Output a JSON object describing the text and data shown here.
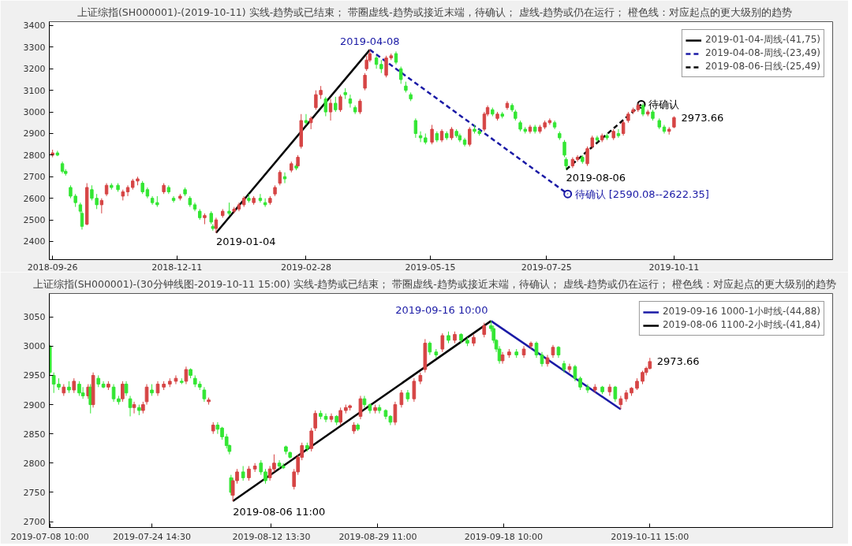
{
  "chart_data": [
    {
      "type": "candlestick",
      "title": "上证综指(SH000001)-(2019-10-11)  实线-趋势或已结束；  带圈虚线-趋势或接近末端，待确认；  虚线-趋势或仍在运行；  橙色线：对应起点的更大级别的趋势",
      "xlim": [
        "2018-09-24",
        "2020-01-16"
      ],
      "ylim": [
        2316,
        3418
      ],
      "xticks": [
        "2018-09-26",
        "2018-12-11",
        "2019-02-28",
        "2019-05-15",
        "2019-07-25",
        "2019-10-11"
      ],
      "yticks": [
        2400,
        2500,
        2600,
        2700,
        2800,
        2900,
        3000,
        3100,
        3200,
        3300,
        3400
      ],
      "grid": false,
      "legend": "top right",
      "x": [
        "2018-09-26",
        "2018-09-29",
        "2018-10-02",
        "2018-10-04",
        "2018-10-07",
        "2018-10-10",
        "2018-10-13",
        "2018-10-14",
        "2018-10-17",
        "2018-10-20",
        "2018-10-23",
        "2018-10-26",
        "2018-10-29",
        "2018-11-01",
        "2018-11-05",
        "2018-11-08",
        "2018-11-11",
        "2018-11-14",
        "2018-11-17",
        "2018-11-20",
        "2018-11-23",
        "2018-11-26",
        "2018-11-29",
        "2018-12-03",
        "2018-12-06",
        "2018-12-09",
        "2018-12-13",
        "2018-12-16",
        "2018-12-19",
        "2018-12-22",
        "2018-12-25",
        "2018-12-28",
        "2019-01-01",
        "2019-01-02",
        "2019-01-04",
        "2019-01-08",
        "2019-01-12",
        "2019-01-15",
        "2019-01-18",
        "2019-01-21",
        "2019-01-24",
        "2019-01-27",
        "2019-01-31",
        "2019-02-03",
        "2019-02-06",
        "2019-02-09",
        "2019-02-12",
        "2019-02-15",
        "2019-02-19",
        "2019-02-22",
        "2019-02-23",
        "2019-02-25",
        "2019-02-28",
        "2019-03-03",
        "2019-03-06",
        "2019-03-09",
        "2019-03-12",
        "2019-03-15",
        "2019-03-18",
        "2019-03-21",
        "2019-03-24",
        "2019-03-27",
        "2019-03-30",
        "2019-04-02",
        "2019-04-05",
        "2019-04-06",
        "2019-04-08",
        "2019-04-12",
        "2019-04-15",
        "2019-04-18",
        "2019-04-21",
        "2019-04-24",
        "2019-04-27",
        "2019-04-30",
        "2019-05-03",
        "2019-05-06",
        "2019-05-09",
        "2019-05-12",
        "2019-05-16",
        "2019-05-19",
        "2019-05-22",
        "2019-05-25",
        "2019-05-28",
        "2019-05-31",
        "2019-06-02",
        "2019-06-05",
        "2019-06-08",
        "2019-06-11",
        "2019-06-14",
        "2019-06-17",
        "2019-06-19",
        "2019-06-22",
        "2019-06-25",
        "2019-06-28",
        "2019-07-01",
        "2019-07-04",
        "2019-07-06",
        "2019-07-09",
        "2019-07-12",
        "2019-07-15",
        "2019-07-18",
        "2019-07-21",
        "2019-07-24",
        "2019-07-27",
        "2019-07-30",
        "2019-08-02",
        "2019-08-05",
        "2019-08-06",
        "2019-08-10",
        "2019-08-13",
        "2019-08-16",
        "2019-08-19",
        "2019-08-22",
        "2019-08-25",
        "2019-08-28",
        "2019-08-31",
        "2019-09-04",
        "2019-09-07",
        "2019-09-10",
        "2019-09-13",
        "2019-09-16",
        "2019-09-19",
        "2019-09-22",
        "2019-09-25",
        "2019-09-28",
        "2019-10-02",
        "2019-10-05",
        "2019-10-08",
        "2019-10-11"
      ],
      "ohlc": [
        [
          2800,
          2825,
          2790,
          2810
        ],
        [
          2810,
          2820,
          2795,
          2800
        ],
        [
          2760,
          2770,
          2715,
          2725
        ],
        [
          2725,
          2735,
          2705,
          2715
        ],
        [
          2650,
          2660,
          2600,
          2610
        ],
        [
          2610,
          2620,
          2560,
          2580
        ],
        [
          2570,
          2580,
          2530,
          2540
        ],
        [
          2530,
          2540,
          2455,
          2470
        ],
        [
          2480,
          2670,
          2475,
          2650
        ],
        [
          2640,
          2660,
          2590,
          2600
        ],
        [
          2600,
          2620,
          2550,
          2570
        ],
        [
          2570,
          2600,
          2530,
          2590
        ],
        [
          2620,
          2670,
          2610,
          2660
        ],
        [
          2660,
          2670,
          2640,
          2650
        ],
        [
          2660,
          2670,
          2630,
          2640
        ],
        [
          2610,
          2640,
          2590,
          2630
        ],
        [
          2630,
          2660,
          2610,
          2650
        ],
        [
          2650,
          2690,
          2640,
          2680
        ],
        [
          2680,
          2700,
          2660,
          2690
        ],
        [
          2670,
          2680,
          2620,
          2630
        ],
        [
          2640,
          2650,
          2600,
          2610
        ],
        [
          2600,
          2610,
          2570,
          2580
        ],
        [
          2580,
          2610,
          2560,
          2570
        ],
        [
          2630,
          2670,
          2620,
          2660
        ],
        [
          2650,
          2660,
          2620,
          2630
        ],
        [
          2600,
          2610,
          2580,
          2590
        ],
        [
          2600,
          2620,
          2590,
          2610
        ],
        [
          2640,
          2650,
          2610,
          2620
        ],
        [
          2600,
          2610,
          2560,
          2570
        ],
        [
          2570,
          2580,
          2540,
          2550
        ],
        [
          2540,
          2550,
          2500,
          2510
        ],
        [
          2510,
          2530,
          2480,
          2520
        ],
        [
          2530,
          2540,
          2480,
          2490
        ],
        [
          2470,
          2480,
          2450,
          2460
        ],
        [
          2460,
          2510,
          2440,
          2500
        ],
        [
          2520,
          2550,
          2510,
          2540
        ],
        [
          2540,
          2580,
          2520,
          2530
        ],
        [
          2540,
          2560,
          2530,
          2550
        ],
        [
          2550,
          2580,
          2540,
          2570
        ],
        [
          2570,
          2610,
          2560,
          2600
        ],
        [
          2600,
          2620,
          2580,
          2590
        ],
        [
          2580,
          2610,
          2570,
          2600
        ],
        [
          2600,
          2620,
          2580,
          2590
        ],
        [
          2580,
          2600,
          2560,
          2570
        ],
        [
          2580,
          2610,
          2570,
          2600
        ],
        [
          2620,
          2660,
          2610,
          2650
        ],
        [
          2670,
          2730,
          2660,
          2720
        ],
        [
          2700,
          2720,
          2670,
          2690
        ],
        [
          2730,
          2770,
          2720,
          2760
        ],
        [
          2750,
          2760,
          2730,
          2740
        ],
        [
          2750,
          2800,
          2740,
          2790
        ],
        [
          2840,
          2990,
          2830,
          2960
        ],
        [
          2960,
          2990,
          2940,
          2950
        ],
        [
          2950,
          2980,
          2920,
          2970
        ],
        [
          3020,
          3100,
          3010,
          3080
        ],
        [
          3080,
          3120,
          3060,
          3100
        ],
        [
          3060,
          3070,
          2980,
          3000
        ],
        [
          3000,
          3060,
          2960,
          3040
        ],
        [
          3040,
          3070,
          3000,
          3010
        ],
        [
          3010,
          3080,
          3000,
          3070
        ],
        [
          3090,
          3110,
          3060,
          3080
        ],
        [
          3060,
          3080,
          3020,
          3040
        ],
        [
          3020,
          3030,
          2990,
          3000
        ],
        [
          3000,
          3060,
          2990,
          3050
        ],
        [
          3110,
          3180,
          3100,
          3170
        ],
        [
          3200,
          3260,
          3190,
          3240
        ],
        [
          3240,
          3288,
          3230,
          3270
        ],
        [
          3250,
          3260,
          3200,
          3220
        ],
        [
          3220,
          3240,
          3180,
          3200
        ],
        [
          3170,
          3260,
          3160,
          3250
        ],
        [
          3250,
          3270,
          3240,
          3260
        ],
        [
          3270,
          3280,
          3220,
          3230
        ],
        [
          3200,
          3210,
          3130,
          3150
        ],
        [
          3120,
          3140,
          3090,
          3100
        ],
        [
          3080,
          3090,
          3050,
          3060
        ],
        [
          2960,
          2970,
          2880,
          2900
        ],
        [
          2890,
          2910,
          2860,
          2880
        ],
        [
          2880,
          2900,
          2850,
          2860
        ],
        [
          2860,
          2940,
          2850,
          2920
        ],
        [
          2900,
          2910,
          2860,
          2870
        ],
        [
          2870,
          2920,
          2860,
          2910
        ],
        [
          2900,
          2910,
          2870,
          2880
        ],
        [
          2880,
          2930,
          2870,
          2920
        ],
        [
          2910,
          2920,
          2880,
          2890
        ],
        [
          2890,
          2900,
          2860,
          2870
        ],
        [
          2870,
          2880,
          2840,
          2850
        ],
        [
          2850,
          2930,
          2840,
          2920
        ],
        [
          2920,
          2940,
          2900,
          2910
        ],
        [
          2910,
          2920,
          2890,
          2900
        ],
        [
          2920,
          3000,
          2910,
          2990
        ],
        [
          2990,
          3030,
          2980,
          3020
        ],
        [
          3010,
          3020,
          2980,
          2990
        ],
        [
          2970,
          3000,
          2960,
          2990
        ],
        [
          2990,
          3000,
          2970,
          2980
        ],
        [
          3020,
          3050,
          3010,
          3040
        ],
        [
          3030,
          3040,
          3000,
          3010
        ],
        [
          3000,
          3010,
          2960,
          2970
        ],
        [
          2950,
          2960,
          2910,
          2920
        ],
        [
          2920,
          2930,
          2900,
          2910
        ],
        [
          2910,
          2940,
          2900,
          2930
        ],
        [
          2930,
          2940,
          2900,
          2910
        ],
        [
          2910,
          2940,
          2900,
          2930
        ],
        [
          2930,
          2960,
          2920,
          2950
        ],
        [
          2950,
          2970,
          2940,
          2960
        ],
        [
          2950,
          2960,
          2920,
          2930
        ],
        [
          2900,
          2910,
          2870,
          2880
        ],
        [
          2860,
          2870,
          2790,
          2800
        ],
        [
          2780,
          2790,
          2733,
          2750
        ],
        [
          2750,
          2790,
          2740,
          2780
        ],
        [
          2780,
          2800,
          2770,
          2790
        ],
        [
          2790,
          2800,
          2760,
          2770
        ],
        [
          2760,
          2840,
          2750,
          2830
        ],
        [
          2840,
          2890,
          2830,
          2880
        ],
        [
          2880,
          2890,
          2860,
          2870
        ],
        [
          2870,
          2900,
          2860,
          2890
        ],
        [
          2890,
          2900,
          2870,
          2880
        ],
        [
          2880,
          2920,
          2870,
          2910
        ],
        [
          2900,
          2920,
          2880,
          2890
        ],
        [
          2900,
          2960,
          2890,
          2950
        ],
        [
          2960,
          3000,
          2950,
          2990
        ],
        [
          3000,
          3020,
          2990,
          3010
        ],
        [
          3010,
          3040,
          3000,
          3030
        ],
        [
          3030,
          3040,
          2980,
          2990
        ],
        [
          2990,
          3010,
          2980,
          3000
        ],
        [
          3000,
          3010,
          2960,
          2970
        ],
        [
          2960,
          2970,
          2920,
          2930
        ],
        [
          2930,
          2940,
          2900,
          2910
        ],
        [
          2910,
          2930,
          2895,
          2920
        ],
        [
          2930,
          2980,
          2925,
          2973.66
        ]
      ],
      "colors": [
        "#d64545",
        "#33e633",
        "#33e633",
        "#33e633",
        "#33e633",
        "#33e633",
        "#33e633",
        "#33e633",
        "#d64545",
        "#33e633",
        "#33e633",
        "#d64545",
        "#d64545",
        "#33e633",
        "#33e633",
        "#d64545",
        "#d64545",
        "#d64545",
        "#d64545",
        "#33e633",
        "#33e633",
        "#33e633",
        "#33e633",
        "#d64545",
        "#33e633",
        "#33e633",
        "#d64545",
        "#33e633",
        "#33e633",
        "#33e633",
        "#33e633",
        "#d64545",
        "#33e633",
        "#33e633",
        "#d64545",
        "#d64545",
        "#33e633",
        "#d64545",
        "#d64545",
        "#d64545",
        "#33e633",
        "#d64545",
        "#33e633",
        "#33e633",
        "#d64545",
        "#d64545",
        "#d64545",
        "#33e633",
        "#d64545",
        "#33e633",
        "#d64545",
        "#d64545",
        "#33e633",
        "#d64545",
        "#d64545",
        "#d64545",
        "#33e633",
        "#d64545",
        "#33e633",
        "#d64545",
        "#33e633",
        "#33e633",
        "#33e633",
        "#d64545",
        "#d64545",
        "#d64545",
        "#d64545",
        "#33e633",
        "#33e633",
        "#d64545",
        "#d64545",
        "#33e633",
        "#33e633",
        "#33e633",
        "#33e633",
        "#33e633",
        "#33e633",
        "#33e633",
        "#d64545",
        "#33e633",
        "#d64545",
        "#33e633",
        "#d64545",
        "#33e633",
        "#33e633",
        "#33e633",
        "#d64545",
        "#33e633",
        "#33e633",
        "#d64545",
        "#d64545",
        "#33e633",
        "#d64545",
        "#33e633",
        "#d64545",
        "#33e633",
        "#33e633",
        "#33e633",
        "#33e633",
        "#d64545",
        "#33e633",
        "#d64545",
        "#d64545",
        "#d64545",
        "#33e633",
        "#33e633",
        "#33e633",
        "#33e633",
        "#d64545",
        "#d64545",
        "#33e633",
        "#d64545",
        "#d64545",
        "#33e633",
        "#d64545",
        "#33e633",
        "#d64545",
        "#33e633",
        "#d64545",
        "#d64545",
        "#d64545",
        "#d64545",
        "#33e633",
        "#d64545",
        "#33e633",
        "#33e633",
        "#33e633",
        "#d64545",
        "#d64545"
      ],
      "series": [
        {
          "type": "line",
          "name": "2019-01-04-周线-(41,75)",
          "color": "#000000",
          "line_style": "solid",
          "x": [
            "2019-01-04",
            "2019-04-08"
          ],
          "values": [
            2440,
            3288
          ]
        },
        {
          "type": "line",
          "name": "2019-04-08-周线-(23,49)",
          "color": "#1a1aa6",
          "line_style": "dashed",
          "x": [
            "2019-04-08",
            "2019-08-07"
          ],
          "values": [
            3288,
            2620
          ]
        },
        {
          "type": "line",
          "name": "2019-08-06-日线-(25,49)",
          "color": "#000000",
          "line_style": "dashed",
          "x": [
            "2019-08-06",
            "2019-09-21"
          ],
          "values": [
            2733,
            3035
          ]
        },
        {
          "type": "scatter",
          "color": "#1a1aa6",
          "marker": "circle",
          "x": [
            "2019-08-07"
          ],
          "values": [
            2620
          ]
        },
        {
          "type": "scatter",
          "color": "#000000",
          "marker": "circle",
          "x": [
            "2019-09-21"
          ],
          "values": [
            3035
          ]
        }
      ],
      "annotations": [
        {
          "text": "2019-04-08",
          "x": "2019-04-08",
          "y": 3288
        },
        {
          "text": "2019-01-04",
          "x": "2019-01-04",
          "y": 2440
        },
        {
          "text": "2019-08-06",
          "x": "2019-08-06",
          "y": 2733
        },
        {
          "text": "待确认 [2590.08--2622.35]",
          "x": "2019-08-07",
          "y": 2620
        },
        {
          "text": "待确认",
          "x": "2019-09-21",
          "y": 3035
        },
        {
          "text": "2973.66",
          "x": "2019-10-11",
          "y": 2973.66
        }
      ]
    },
    {
      "type": "candlestick",
      "title": "上证综指(SH000001)-(30分钟线图-2019-10-11 15:00)  实线-趋势或已结束；  带圈虚线-趋势或接近末端，待确认；  虚线-趋势或仍在运行；  橙色线：对应起点的更大级别的趋势",
      "xlim": [
        "2019-07-08T08:00",
        "2019-11-09T15:00"
      ],
      "ylim": [
        2690,
        3090
      ],
      "xticks": [
        {
          "value": "2019-07-08T10:00",
          "label": "2019-07-08 10:00"
        },
        {
          "value": "2019-07-24T14:30",
          "label": "2019-07-24 14:30"
        },
        {
          "value": "2019-08-12T13:30",
          "label": "2019-08-12 13:30"
        },
        {
          "value": "2019-08-29T11:00",
          "label": "2019-08-29 11:00"
        },
        {
          "value": "2019-09-18T10:00",
          "label": "2019-09-18 10:00"
        },
        {
          "value": "2019-10-11T15:00",
          "label": "2019-10-11 15:00"
        }
      ],
      "yticks": [
        2700,
        2750,
        2800,
        2850,
        2900,
        2950,
        3000,
        3050
      ],
      "grid": false,
      "legend": "top right",
      "x": [
        "2019-07-08T10:00",
        "2019-07-09T01:00",
        "2019-07-09T20:00",
        "2019-07-10T15:00",
        "2019-07-11T11:00",
        "2019-07-12T06:00",
        "2019-07-13T02:00",
        "2019-07-13T16:00",
        "2019-07-14T12:00",
        "2019-07-14T21:00",
        "2019-07-15T07:00",
        "2019-07-16T03:00",
        "2019-07-16T22:00",
        "2019-07-17T17:00",
        "2019-07-18T13:00",
        "2019-07-19T08:00",
        "2019-07-19T23:00",
        "2019-07-20T13:00",
        "2019-07-21T04:00",
        "2019-07-21T19:00",
        "2019-07-22T14:00",
        "2019-07-23T05:00",
        "2019-07-23T19:00",
        "2019-07-24T14:30",
        "2019-07-25T13:00",
        "2019-07-26T12:00",
        "2019-07-27T11:00",
        "2019-07-28T10:00",
        "2019-07-29T08:00",
        "2019-07-30T01:00",
        "2019-07-30T18:00",
        "2019-07-31T11:00",
        "2019-08-01T05:00",
        "2019-08-01T22:00",
        "2019-08-02T15:00",
        "2019-08-03T08:00",
        "2019-08-04T01:00",
        "2019-08-04T18:00",
        "2019-08-05T11:00",
        "2019-08-05T22:00",
        "2019-08-06T04:00",
        "2019-08-06T11:00",
        "2019-08-07T03:00",
        "2019-08-08T02:00",
        "2019-08-09T00:00",
        "2019-08-09T23:00",
        "2019-08-10T22:00",
        "2019-08-11T15:00",
        "2019-08-12T08:00",
        "2019-08-13T00:00",
        "2019-08-13T20:00",
        "2019-08-14T11:00",
        "2019-08-14T21:00",
        "2019-08-15T13:00",
        "2019-08-16T04:00",
        "2019-08-16T19:00",
        "2019-08-17T10:00",
        "2019-08-18T06:00",
        "2019-08-18T22:00",
        "2019-08-19T13:00",
        "2019-08-20T09:00",
        "2019-08-21T05:00",
        "2019-08-22T02:00",
        "2019-08-22T22:00",
        "2019-08-23T13:00",
        "2019-08-24T09:00",
        "2019-08-25T01:00",
        "2019-08-25T16:00",
        "2019-08-26T07:00",
        "2019-08-26T17:00",
        "2019-08-27T08:00",
        "2019-08-28T05:00",
        "2019-08-29T01:00",
        "2019-08-29T17:00",
        "2019-08-30T17:00",
        "2019-08-31T11:00",
        "2019-09-01T05:00",
        "2019-09-02T05:00",
        "2019-09-03T05:00",
        "2019-09-04T05:00",
        "2019-09-05T05:00",
        "2019-09-05T23:00",
        "2019-09-06T17:00",
        "2019-09-07T17:00",
        "2019-09-08T17:00",
        "2019-09-09T16:00",
        "2019-09-10T16:00",
        "2019-09-11T16:00",
        "2019-09-12T16:00",
        "2019-09-13T16:00",
        "2019-09-15T08:00",
        "2019-09-16T10:00",
        "2019-09-16T20:00",
        "2019-09-17T06:00",
        "2019-09-17T18:00",
        "2019-09-18T06:00",
        "2019-09-19T07:00",
        "2019-09-20T11:00",
        "2019-09-21T15:00",
        "2019-09-22T18:00",
        "2019-09-23T15:00",
        "2019-09-24T12:00",
        "2019-09-25T09:00",
        "2019-09-26T06:00",
        "2019-09-27T03:00",
        "2019-09-28T00:00",
        "2019-09-28T21:00",
        "2019-09-29T18:00",
        "2019-09-30T14:00",
        "2019-10-01T18:00",
        "2019-10-02T22:00",
        "2019-10-04T02:00",
        "2019-10-05T06:00",
        "2019-10-06T03:00",
        "2019-10-07T00:00",
        "2019-10-07T21:00",
        "2019-10-08T17:00",
        "2019-10-09T14:00",
        "2019-10-10T11:00",
        "2019-10-11T01:00",
        "2019-10-11T15:00"
      ],
      "ohlc": [
        [
          3000,
          3002,
          2950,
          2955
        ],
        [
          2950,
          2955,
          2920,
          2935
        ],
        [
          2935,
          2945,
          2925,
          2930
        ],
        [
          2920,
          2935,
          2915,
          2930
        ],
        [
          2930,
          2940,
          2920,
          2925
        ],
        [
          2925,
          2945,
          2920,
          2940
        ],
        [
          2935,
          2940,
          2915,
          2920
        ],
        [
          2920,
          2930,
          2910,
          2915
        ],
        [
          2915,
          2935,
          2910,
          2930
        ],
        [
          2930,
          2935,
          2885,
          2900
        ],
        [
          2900,
          2955,
          2895,
          2950
        ],
        [
          2945,
          2950,
          2930,
          2935
        ],
        [
          2935,
          2940,
          2928,
          2930
        ],
        [
          2930,
          2940,
          2925,
          2935
        ],
        [
          2930,
          2935,
          2905,
          2910
        ],
        [
          2910,
          2915,
          2900,
          2905
        ],
        [
          2910,
          2940,
          2905,
          2935
        ],
        [
          2935,
          2940,
          2915,
          2920
        ],
        [
          2910,
          2915,
          2880,
          2895
        ],
        [
          2895,
          2905,
          2885,
          2900
        ],
        [
          2895,
          2900,
          2882,
          2890
        ],
        [
          2890,
          2905,
          2885,
          2900
        ],
        [
          2905,
          2935,
          2900,
          2930
        ],
        [
          2925,
          2935,
          2915,
          2920
        ],
        [
          2920,
          2940,
          2915,
          2935
        ],
        [
          2930,
          2940,
          2925,
          2935
        ],
        [
          2935,
          2945,
          2930,
          2940
        ],
        [
          2940,
          2950,
          2935,
          2945
        ],
        [
          2940,
          2945,
          2935,
          2938
        ],
        [
          2940,
          2965,
          2935,
          2960
        ],
        [
          2960,
          2962,
          2945,
          2950
        ],
        [
          2945,
          2950,
          2930,
          2935
        ],
        [
          2935,
          2940,
          2925,
          2930
        ],
        [
          2925,
          2930,
          2905,
          2910
        ],
        [
          2905,
          2912,
          2900,
          2908
        ],
        [
          2855,
          2870,
          2850,
          2865
        ],
        [
          2865,
          2870,
          2850,
          2858
        ],
        [
          2860,
          2862,
          2840,
          2845
        ],
        [
          2845,
          2850,
          2825,
          2830
        ],
        [
          2830,
          2832,
          2815,
          2820
        ],
        [
          2775,
          2780,
          2745,
          2750
        ],
        [
          2745,
          2775,
          2735,
          2770
        ],
        [
          2770,
          2790,
          2765,
          2785
        ],
        [
          2785,
          2795,
          2770,
          2775
        ],
        [
          2775,
          2795,
          2770,
          2790
        ],
        [
          2790,
          2800,
          2785,
          2795
        ],
        [
          2800,
          2805,
          2780,
          2785
        ],
        [
          2785,
          2790,
          2765,
          2770
        ],
        [
          2775,
          2795,
          2770,
          2790
        ],
        [
          2790,
          2815,
          2785,
          2800
        ],
        [
          2800,
          2805,
          2790,
          2795
        ],
        [
          2795,
          2800,
          2790,
          2792
        ],
        [
          2828,
          2830,
          2815,
          2820
        ],
        [
          2818,
          2820,
          2808,
          2810
        ],
        [
          2760,
          2790,
          2755,
          2785
        ],
        [
          2785,
          2815,
          2780,
          2810
        ],
        [
          2810,
          2835,
          2805,
          2830
        ],
        [
          2830,
          2835,
          2820,
          2825
        ],
        [
          2825,
          2860,
          2820,
          2855
        ],
        [
          2860,
          2890,
          2855,
          2885
        ],
        [
          2885,
          2890,
          2875,
          2880
        ],
        [
          2880,
          2885,
          2870,
          2875
        ],
        [
          2875,
          2885,
          2870,
          2880
        ],
        [
          2880,
          2882,
          2865,
          2870
        ],
        [
          2870,
          2895,
          2865,
          2890
        ],
        [
          2890,
          2900,
          2885,
          2895
        ],
        [
          2895,
          2900,
          2890,
          2898
        ],
        [
          2855,
          2870,
          2850,
          2865
        ],
        [
          2865,
          2868,
          2855,
          2858
        ],
        [
          2880,
          2915,
          2875,
          2910
        ],
        [
          2910,
          2915,
          2895,
          2900
        ],
        [
          2900,
          2902,
          2885,
          2890
        ],
        [
          2890,
          2900,
          2885,
          2895
        ],
        [
          2895,
          2900,
          2885,
          2890
        ],
        [
          2890,
          2892,
          2875,
          2880
        ],
        [
          2880,
          2882,
          2865,
          2870
        ],
        [
          2870,
          2905,
          2865,
          2900
        ],
        [
          2900,
          2925,
          2895,
          2920
        ],
        [
          2920,
          2925,
          2905,
          2910
        ],
        [
          2910,
          2945,
          2905,
          2940
        ],
        [
          2940,
          2955,
          2935,
          2950
        ],
        [
          2960,
          3012,
          2955,
          3005
        ],
        [
          3005,
          3008,
          2985,
          2990
        ],
        [
          2990,
          2995,
          2980,
          2985
        ],
        [
          2995,
          3022,
          2990,
          3018
        ],
        [
          3018,
          3025,
          3005,
          3010
        ],
        [
          3010,
          3025,
          3005,
          3020
        ],
        [
          3020,
          3022,
          3005,
          3010
        ],
        [
          3010,
          3015,
          3000,
          3005
        ],
        [
          3005,
          3020,
          3000,
          3015
        ],
        [
          3020,
          3040,
          3015,
          3035
        ],
        [
          3035,
          3043,
          3025,
          3030
        ],
        [
          3030,
          3035,
          3005,
          3010
        ],
        [
          3010,
          3012,
          2990,
          2995
        ],
        [
          2995,
          3000,
          2970,
          2975
        ],
        [
          2975,
          2990,
          2970,
          2985
        ],
        [
          2985,
          2995,
          2980,
          2990
        ],
        [
          2990,
          2995,
          2980,
          2985
        ],
        [
          2985,
          3000,
          2980,
          2995
        ],
        [
          3000,
          3008,
          2995,
          3005
        ],
        [
          3005,
          3008,
          2980,
          2985
        ],
        [
          2985,
          2990,
          2965,
          2970
        ],
        [
          2970,
          2985,
          2965,
          2980
        ],
        [
          2985,
          3002,
          2980,
          2998
        ],
        [
          2998,
          3000,
          2980,
          2985
        ],
        [
          2970,
          2975,
          2955,
          2960
        ],
        [
          2960,
          2970,
          2955,
          2965
        ],
        [
          2965,
          2968,
          2940,
          2945
        ],
        [
          2945,
          2948,
          2925,
          2930
        ],
        [
          2930,
          2935,
          2920,
          2925
        ],
        [
          2925,
          2935,
          2920,
          2930
        ],
        [
          2930,
          2932,
          2918,
          2922
        ],
        [
          2922,
          2935,
          2915,
          2930
        ],
        [
          2930,
          2932,
          2905,
          2910
        ],
        [
          2900,
          2915,
          2892,
          2910
        ],
        [
          2910,
          2925,
          2905,
          2920
        ],
        [
          2920,
          2930,
          2915,
          2928
        ],
        [
          2928,
          2945,
          2925,
          2940
        ],
        [
          2940,
          2958,
          2935,
          2955
        ],
        [
          2955,
          2965,
          2950,
          2962
        ],
        [
          2962,
          2980,
          2960,
          2973.66
        ]
      ],
      "colors": [
        "#33e633",
        "#33e633",
        "#33e633",
        "#d64545",
        "#33e633",
        "#d64545",
        "#33e633",
        "#33e633",
        "#d64545",
        "#33e633",
        "#d64545",
        "#33e633",
        "#33e633",
        "#d64545",
        "#33e633",
        "#33e633",
        "#d64545",
        "#33e633",
        "#33e633",
        "#d64545",
        "#33e633",
        "#d64545",
        "#d64545",
        "#33e633",
        "#d64545",
        "#d64545",
        "#d64545",
        "#d64545",
        "#33e633",
        "#d64545",
        "#33e633",
        "#33e633",
        "#33e633",
        "#33e633",
        "#d64545",
        "#d64545",
        "#33e633",
        "#33e633",
        "#33e633",
        "#33e633",
        "#33e633",
        "#d64545",
        "#d64545",
        "#33e633",
        "#d64545",
        "#d64545",
        "#33e633",
        "#33e633",
        "#d64545",
        "#d64545",
        "#33e633",
        "#33e633",
        "#33e633",
        "#33e633",
        "#d64545",
        "#d64545",
        "#d64545",
        "#33e633",
        "#d64545",
        "#d64545",
        "#33e633",
        "#33e633",
        "#d64545",
        "#33e633",
        "#d64545",
        "#d64545",
        "#d64545",
        "#d64545",
        "#33e633",
        "#d64545",
        "#33e633",
        "#33e633",
        "#d64545",
        "#33e633",
        "#33e633",
        "#33e633",
        "#d64545",
        "#d64545",
        "#33e633",
        "#d64545",
        "#d64545",
        "#d64545",
        "#33e633",
        "#33e633",
        "#d64545",
        "#33e633",
        "#d64545",
        "#33e633",
        "#33e633",
        "#d64545",
        "#d64545",
        "#33e633",
        "#33e633",
        "#33e633",
        "#33e633",
        "#d64545",
        "#d64545",
        "#33e633",
        "#d64545",
        "#d64545",
        "#33e633",
        "#33e633",
        "#d64545",
        "#d64545",
        "#33e633",
        "#33e633",
        "#d64545",
        "#33e633",
        "#33e633",
        "#33e633",
        "#d64545",
        "#33e633",
        "#d64545",
        "#33e633",
        "#d64545",
        "#d64545",
        "#d64545",
        "#d64545",
        "#d64545",
        "#d64545",
        "#d64545"
      ],
      "series": [
        {
          "type": "line",
          "name": "2019-09-16 1000-1小时线-(44,88)",
          "color": "#1a1aa6",
          "line_style": "solid",
          "x": [
            "2019-09-16T10:00",
            "2019-10-07T00:00"
          ],
          "values": [
            3043,
            2892
          ]
        },
        {
          "type": "line",
          "name": "2019-08-06 1100-2小时线-(41,84)",
          "color": "#000000",
          "line_style": "solid",
          "x": [
            "2019-08-06T11:00",
            "2019-09-16T10:00"
          ],
          "values": [
            2735,
            3043
          ]
        }
      ],
      "annotations": [
        {
          "text": "2019-09-16 10:00",
          "x": "2019-09-16T10:00",
          "y": 3043
        },
        {
          "text": "2019-08-06 11:00",
          "x": "2019-08-06T11:00",
          "y": 2735
        },
        {
          "text": "2973.66",
          "x": "2019-10-11T15:00",
          "y": 2973.66
        }
      ]
    }
  ]
}
